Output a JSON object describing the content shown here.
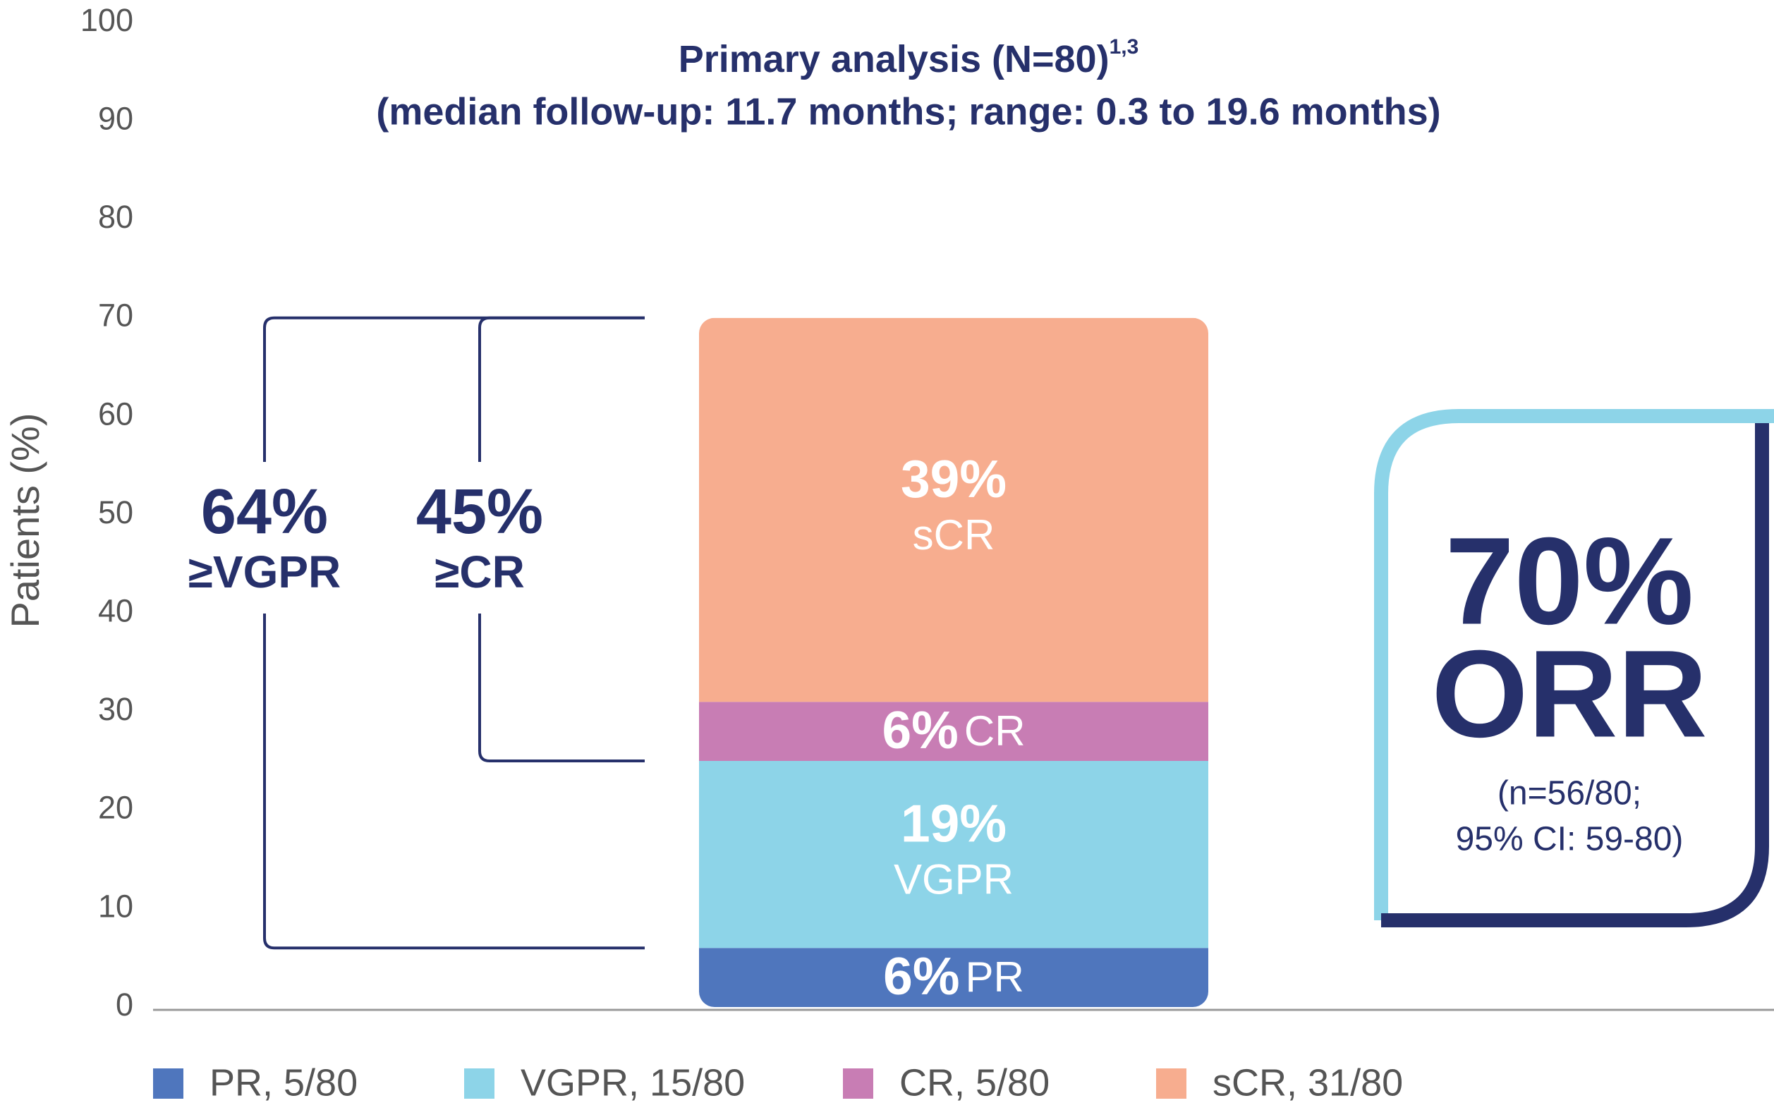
{
  "chart_data": {
    "type": "stacked_bar",
    "title": "Primary analysis (N=80)",
    "title_note": "1,3",
    "subtitle": "(median follow-up: 11.7 months; range: 0.3 to 19.6 months)",
    "y_label": "Patients (%)",
    "ylim": [
      0,
      100
    ],
    "yticks": [
      0,
      10,
      20,
      30,
      40,
      50,
      60,
      70,
      80,
      90,
      100
    ],
    "categories": [
      null
    ],
    "series": [
      {
        "name": "PR, 5/80",
        "label": "PR",
        "color": "#4f76bd",
        "values": [
          6
        ],
        "value_labels": [
          "6%"
        ]
      },
      {
        "name": "VGPR, 15/80",
        "label": "VGPR",
        "color": "#8dd4e8",
        "values": [
          19
        ],
        "value_labels": [
          "19%"
        ]
      },
      {
        "name": "CR, 5/80",
        "label": "CR",
        "color": "#c87db4",
        "values": [
          6
        ],
        "value_labels": [
          "6%"
        ]
      },
      {
        "name": "sCR, 31/80",
        "label": "sCR",
        "color": "#f7ad8f",
        "values": [
          39
        ],
        "value_labels": [
          "39%"
        ]
      }
    ],
    "brackets": [
      {
        "value": "64%",
        "label": "≥VGPR"
      },
      {
        "value": "45%",
        "label": "≥CR"
      }
    ],
    "orr": {
      "value": "70%",
      "label": "ORR",
      "note_lines": [
        "(n=56/80;",
        "95% CI: 59-80)"
      ]
    }
  }
}
